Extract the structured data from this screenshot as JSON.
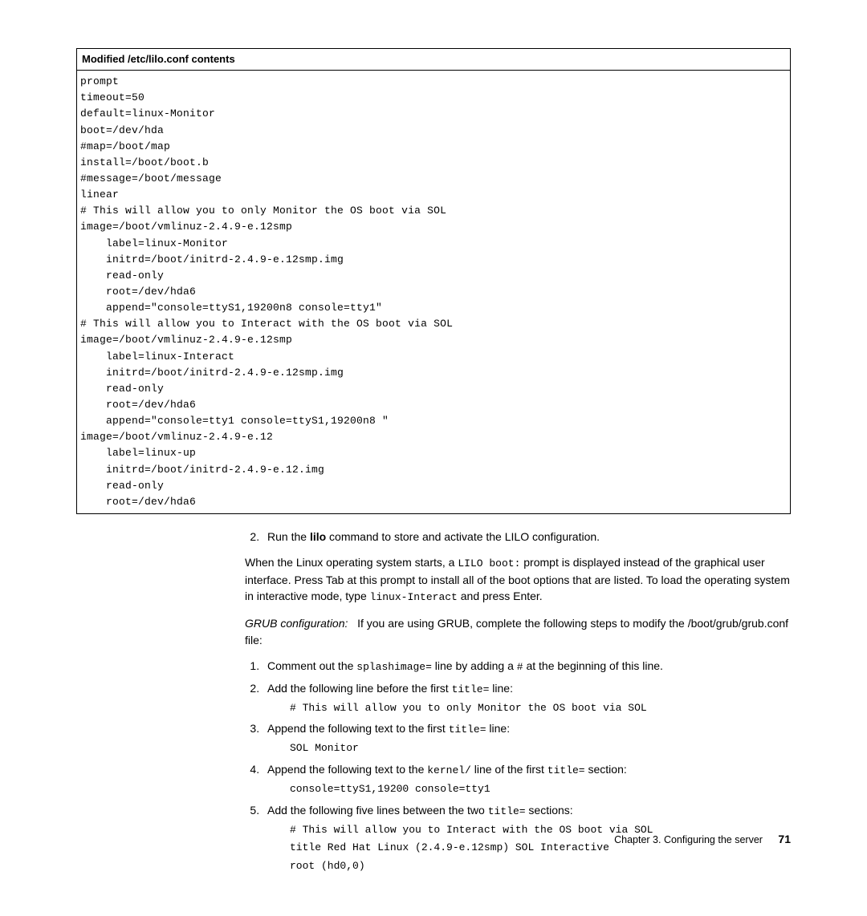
{
  "codebox": {
    "title": "Modified /etc/lilo.conf contents",
    "lines": [
      "prompt",
      "timeout=50",
      "default=linux-Monitor",
      "boot=/dev/hda",
      "#map=/boot/map",
      "install=/boot/boot.b",
      "#message=/boot/message",
      "linear",
      "# This will allow you to only Monitor the OS boot via SOL",
      "image=/boot/vmlinuz-2.4.9-e.12smp",
      "    label=linux-Monitor",
      "    initrd=/boot/initrd-2.4.9-e.12smp.img",
      "    read-only",
      "    root=/dev/hda6",
      "    append=\"console=ttyS1,19200n8 console=tty1\"",
      "# This will allow you to Interact with the OS boot via SOL",
      "image=/boot/vmlinuz-2.4.9-e.12smp",
      "    label=linux-Interact",
      "    initrd=/boot/initrd-2.4.9-e.12smp.img",
      "    read-only",
      "    root=/dev/hda6",
      "    append=\"console=tty1 console=ttyS1,19200n8 \"",
      "image=/boot/vmlinuz-2.4.9-e.12",
      "    label=linux-up",
      "    initrd=/boot/initrd-2.4.9-e.12.img",
      "    read-only",
      "    root=/dev/hda6"
    ]
  },
  "step2": {
    "num": "2.",
    "text_a": "Run the ",
    "cmd": "lilo",
    "text_b": " command to store and activate the LILO configuration."
  },
  "para1": {
    "a": "When the Linux operating system starts, a ",
    "m1": "LILO boot:",
    "b": " prompt is displayed instead of the graphical user interface. Press Tab at this prompt to install all of the boot options that are listed. To load the operating system in interactive mode, type ",
    "m2": "linux-Interact",
    "c": " and press Enter."
  },
  "grub": {
    "label": "GRUB configuration:",
    "intro": "If you are using GRUB, complete the following steps to modify the /boot/grub/grub.conf file:"
  },
  "grub_steps": {
    "s1a": "Comment out the ",
    "s1m": "splashimage=",
    "s1b": " line by adding a ",
    "s1m2": "#",
    "s1c": " at the beginning of this line.",
    "s2a": "Add the following line before the first ",
    "s2m": "title=",
    "s2b": " line:",
    "s2code": "# This will allow you to only Monitor the OS boot via SOL",
    "s3a": "Append the following text to the first ",
    "s3m": "title=",
    "s3b": " line:",
    "s3code": "SOL Monitor",
    "s4a": "Append the following text to the ",
    "s4m1": "kernel/",
    "s4b": " line of the first ",
    "s4m2": "title=",
    "s4c": " section:",
    "s4code": "console=ttyS1,19200 console=tty1",
    "s5a": "Add the following five lines between the two ",
    "s5m": "title=",
    "s5b": " sections:",
    "s5code1": "# This will allow you to Interact with the OS boot via SOL",
    "s5code2": "title Red Hat Linux (2.4.9-e.12smp) SOL Interactive",
    "s5code3": "    root (hd0,0)"
  },
  "footer": {
    "chapter": "Chapter 3. Configuring the server",
    "page": "71"
  }
}
